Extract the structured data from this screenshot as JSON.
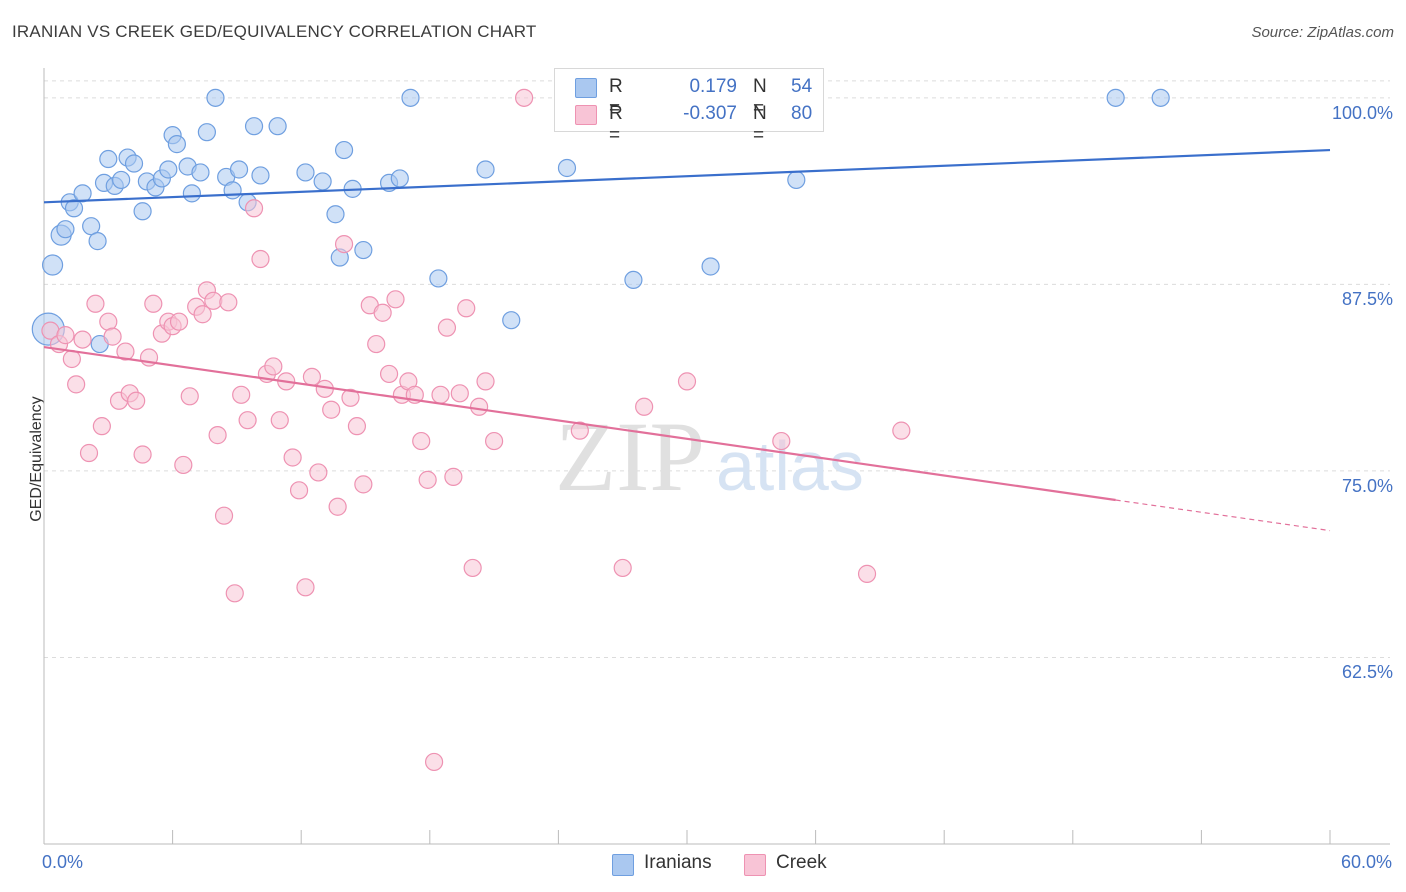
{
  "title": "IRANIAN VS CREEK GED/EQUIVALENCY CORRELATION CHART",
  "source": "Source: ZipAtlas.com",
  "watermark": {
    "zip": "ZIP",
    "atlas": "atlas"
  },
  "chart_data": {
    "type": "scatter",
    "xlabel": "",
    "ylabel": "GED/Equivalency",
    "xlim": [
      0,
      60
    ],
    "ylim": [
      50,
      102
    ],
    "x_tick_labels": [
      "0.0%",
      "60.0%"
    ],
    "y_ticks": [
      62.5,
      75.0,
      87.5,
      100.0
    ],
    "y_tick_labels": [
      "62.5%",
      "75.0%",
      "87.5%",
      "100.0%"
    ],
    "grid": true,
    "legend": {
      "placement": "top-center",
      "r_label": "R =",
      "n_label": "N ="
    },
    "series": [
      {
        "name": "Iranians",
        "color": "#6f9fe0",
        "fill": "#aac8f0",
        "line_color": "#3a6fcc",
        "R": "0.179",
        "N": "54",
        "trend": {
          "x": [
            0,
            60
          ],
          "y": [
            93.0,
            96.5
          ],
          "dashed_from": null
        },
        "points": [
          [
            0.2,
            84.5
          ],
          [
            0.4,
            88.8
          ],
          [
            0.8,
            90.8
          ],
          [
            1.0,
            91.2
          ],
          [
            1.2,
            93.0
          ],
          [
            1.4,
            92.6
          ],
          [
            1.8,
            93.6
          ],
          [
            2.2,
            91.4
          ],
          [
            2.5,
            90.4
          ],
          [
            2.8,
            94.3
          ],
          [
            3.0,
            95.9
          ],
          [
            3.3,
            94.1
          ],
          [
            3.6,
            94.5
          ],
          [
            3.9,
            96.0
          ],
          [
            4.2,
            95.6
          ],
          [
            4.6,
            92.4
          ],
          [
            4.8,
            94.4
          ],
          [
            5.2,
            94.0
          ],
          [
            5.5,
            94.6
          ],
          [
            5.8,
            95.2
          ],
          [
            6.0,
            97.5
          ],
          [
            6.2,
            96.9
          ],
          [
            6.7,
            95.4
          ],
          [
            6.9,
            93.6
          ],
          [
            7.3,
            95.0
          ],
          [
            7.6,
            97.7
          ],
          [
            8.0,
            100.0
          ],
          [
            8.5,
            94.7
          ],
          [
            8.8,
            93.8
          ],
          [
            9.1,
            95.2
          ],
          [
            9.5,
            93.0
          ],
          [
            9.8,
            98.1
          ],
          [
            10.1,
            94.8
          ],
          [
            10.9,
            98.1
          ],
          [
            12.2,
            95.0
          ],
          [
            13.0,
            94.4
          ],
          [
            13.6,
            92.2
          ],
          [
            14.0,
            96.5
          ],
          [
            14.4,
            93.9
          ],
          [
            13.8,
            89.3
          ],
          [
            14.9,
            89.8
          ],
          [
            16.1,
            94.3
          ],
          [
            16.6,
            94.6
          ],
          [
            17.1,
            100.0
          ],
          [
            18.4,
            87.9
          ],
          [
            20.6,
            95.2
          ],
          [
            21.8,
            85.1
          ],
          [
            24.4,
            95.3
          ],
          [
            27.5,
            87.8
          ],
          [
            31.1,
            88.7
          ],
          [
            35.1,
            94.5
          ],
          [
            50.0,
            100.0
          ],
          [
            52.1,
            100.0
          ],
          [
            2.6,
            83.5
          ]
        ]
      },
      {
        "name": "Creek",
        "color": "#ee92b2",
        "fill": "#f8c4d6",
        "line_color": "#e2709a",
        "R": "-0.307",
        "N": "80",
        "trend": {
          "x": [
            0,
            60
          ],
          "y": [
            83.3,
            71.0
          ],
          "dashed_from": 50
        },
        "points": [
          [
            0.3,
            84.4
          ],
          [
            0.7,
            83.5
          ],
          [
            1.0,
            84.1
          ],
          [
            1.3,
            82.5
          ],
          [
            1.5,
            80.8
          ],
          [
            1.8,
            83.8
          ],
          [
            2.1,
            76.2
          ],
          [
            2.4,
            86.2
          ],
          [
            2.7,
            78.0
          ],
          [
            3.0,
            85.0
          ],
          [
            3.2,
            84.0
          ],
          [
            3.5,
            79.7
          ],
          [
            3.8,
            83.0
          ],
          [
            4.0,
            80.2
          ],
          [
            4.3,
            79.7
          ],
          [
            4.6,
            76.1
          ],
          [
            4.9,
            82.6
          ],
          [
            5.1,
            86.2
          ],
          [
            5.5,
            84.2
          ],
          [
            5.8,
            85.0
          ],
          [
            6.0,
            84.7
          ],
          [
            6.3,
            85.0
          ],
          [
            6.5,
            75.4
          ],
          [
            6.8,
            80.0
          ],
          [
            7.1,
            86.0
          ],
          [
            7.4,
            85.5
          ],
          [
            7.6,
            87.1
          ],
          [
            7.9,
            86.4
          ],
          [
            8.1,
            77.4
          ],
          [
            8.4,
            72.0
          ],
          [
            8.6,
            86.3
          ],
          [
            8.9,
            66.8
          ],
          [
            9.2,
            80.1
          ],
          [
            9.5,
            78.4
          ],
          [
            9.8,
            92.6
          ],
          [
            10.1,
            89.2
          ],
          [
            10.4,
            81.5
          ],
          [
            10.7,
            82.0
          ],
          [
            11.0,
            78.4
          ],
          [
            11.3,
            81.0
          ],
          [
            11.6,
            75.9
          ],
          [
            11.9,
            73.7
          ],
          [
            12.2,
            67.2
          ],
          [
            12.5,
            81.3
          ],
          [
            12.8,
            74.9
          ],
          [
            13.1,
            80.5
          ],
          [
            13.4,
            79.1
          ],
          [
            13.7,
            72.6
          ],
          [
            14.0,
            90.2
          ],
          [
            14.3,
            79.9
          ],
          [
            14.6,
            78.0
          ],
          [
            14.9,
            74.1
          ],
          [
            15.2,
            86.1
          ],
          [
            15.5,
            83.5
          ],
          [
            15.8,
            85.6
          ],
          [
            16.1,
            81.5
          ],
          [
            16.4,
            86.5
          ],
          [
            16.7,
            80.1
          ],
          [
            17.0,
            81.0
          ],
          [
            17.3,
            80.1
          ],
          [
            17.6,
            77.0
          ],
          [
            17.9,
            74.4
          ],
          [
            18.2,
            55.5
          ],
          [
            18.5,
            80.1
          ],
          [
            18.8,
            84.6
          ],
          [
            19.1,
            74.6
          ],
          [
            19.4,
            80.2
          ],
          [
            19.7,
            85.9
          ],
          [
            20.0,
            68.5
          ],
          [
            20.3,
            79.3
          ],
          [
            20.6,
            81.0
          ],
          [
            21.0,
            77.0
          ],
          [
            25.0,
            77.7
          ],
          [
            27.0,
            68.5
          ],
          [
            28.0,
            79.3
          ],
          [
            30.0,
            81.0
          ],
          [
            34.4,
            77.0
          ],
          [
            38.4,
            68.1
          ],
          [
            40.0,
            77.7
          ],
          [
            22.4,
            100.0
          ]
        ]
      }
    ]
  }
}
